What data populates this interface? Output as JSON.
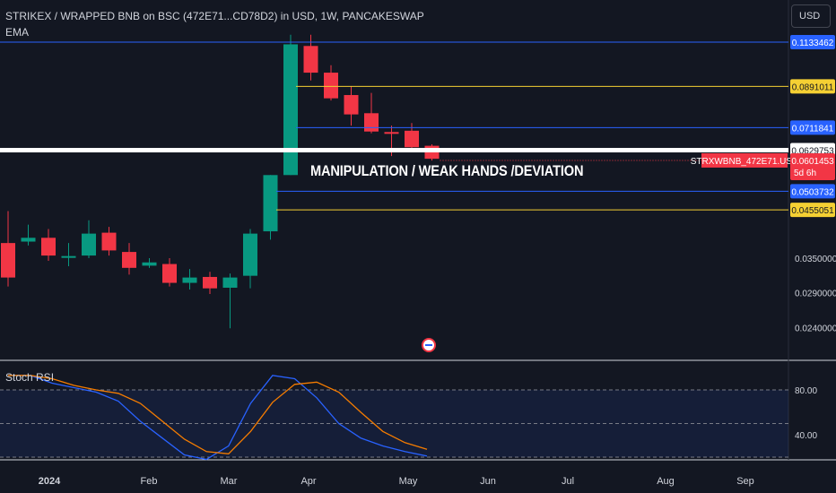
{
  "header": {
    "title": "STRIKEX / WRAPPED BNB on BSC (472E71...CD78D2) in USD, 1W, PANCAKESWAP",
    "indicator": "EMA"
  },
  "currency_button": "USD",
  "annotation": "MANIPULATION / WEAK HANDS /DEVIATION",
  "rsi_panel": {
    "label": "Stoch RSI"
  },
  "colors": {
    "background": "#131722",
    "up": "#089981",
    "down": "#f23645",
    "blue_level": "#2962ff",
    "yellow_level": "#f5d033",
    "white_level": "#ffffff",
    "rsi_k": "#2962ff",
    "rsi_d": "#f57c00"
  },
  "chart_data": [
    {
      "type": "candlestick",
      "price_scale": "log",
      "y_axis_ticks": [
        "0.0350000",
        "0.0290000",
        "0.0240000"
      ],
      "x_axis_ticks": [
        "2024",
        "Feb",
        "Mar",
        "Apr",
        "May",
        "Jun",
        "Jul",
        "Aug",
        "Sep"
      ],
      "candles": [
        {
          "o": 0.038,
          "h": 0.0452,
          "l": 0.03,
          "c": 0.0315
        },
        {
          "o": 0.0383,
          "h": 0.042,
          "l": 0.0375,
          "c": 0.0391
        },
        {
          "o": 0.0391,
          "h": 0.041,
          "l": 0.0345,
          "c": 0.0355
        },
        {
          "o": 0.0352,
          "h": 0.038,
          "l": 0.0335,
          "c": 0.0354
        },
        {
          "o": 0.0355,
          "h": 0.043,
          "l": 0.035,
          "c": 0.04
        },
        {
          "o": 0.0402,
          "h": 0.0415,
          "l": 0.0355,
          "c": 0.0365
        },
        {
          "o": 0.0362,
          "h": 0.038,
          "l": 0.032,
          "c": 0.0332
        },
        {
          "o": 0.0336,
          "h": 0.035,
          "l": 0.0332,
          "c": 0.0342
        },
        {
          "o": 0.0339,
          "h": 0.035,
          "l": 0.03,
          "c": 0.0306
        },
        {
          "o": 0.0306,
          "h": 0.033,
          "l": 0.0295,
          "c": 0.0315
        },
        {
          "o": 0.0316,
          "h": 0.0325,
          "l": 0.0288,
          "c": 0.0297
        },
        {
          "o": 0.0298,
          "h": 0.0322,
          "l": 0.0239,
          "c": 0.0315
        },
        {
          "o": 0.0318,
          "h": 0.041,
          "l": 0.0297,
          "c": 0.04
        },
        {
          "o": 0.0405,
          "h": 0.055,
          "l": 0.0387,
          "c": 0.055
        },
        {
          "o": 0.055,
          "h": 0.118,
          "l": 0.055,
          "c": 0.112
        },
        {
          "o": 0.111,
          "h": 0.118,
          "l": 0.092,
          "c": 0.096
        },
        {
          "o": 0.096,
          "h": 0.1,
          "l": 0.0825,
          "c": 0.0835
        },
        {
          "o": 0.085,
          "h": 0.089,
          "l": 0.072,
          "c": 0.0765
        },
        {
          "o": 0.077,
          "h": 0.086,
          "l": 0.069,
          "c": 0.0697
        },
        {
          "o": 0.0695,
          "h": 0.072,
          "l": 0.061,
          "c": 0.069
        },
        {
          "o": 0.07,
          "h": 0.073,
          "l": 0.063,
          "c": 0.064
        },
        {
          "o": 0.0645,
          "h": 0.065,
          "l": 0.0595,
          "c": 0.0601
        }
      ],
      "levels": [
        {
          "label": "0.1133462",
          "value": 0.1133462,
          "color": "#2962ff",
          "text_color": "#ffffff",
          "style": "line"
        },
        {
          "label": "0.0891011",
          "value": 0.0891011,
          "color": "#f5d033",
          "text_color": "#131722",
          "style": "line"
        },
        {
          "label": "0.0711841",
          "value": 0.0711841,
          "color": "#2962ff",
          "text_color": "#ffffff",
          "style": "line"
        },
        {
          "label": "0.0629753",
          "value": 0.0629753,
          "color": "#ffffff",
          "text_color": "#131722",
          "style": "thick"
        },
        {
          "label": "0.0503732",
          "value": 0.0503732,
          "color": "#2962ff",
          "text_color": "#ffffff",
          "style": "line"
        },
        {
          "label": "0.0455051",
          "value": 0.0455051,
          "color": "#f5d033",
          "text_color": "#131722",
          "style": "line"
        }
      ],
      "current_price": {
        "label": "0.0601453",
        "symbol": "STRXWBNB_472E71.USD",
        "countdown": "5d 6h",
        "value": 0.0601453,
        "color": "#f23645"
      }
    },
    {
      "type": "line",
      "title": "Stoch RSI",
      "y_axis_ticks": [
        "80.00",
        "40.00"
      ],
      "ylim": [
        20,
        100
      ],
      "band": [
        20,
        80
      ],
      "series": [
        {
          "values": [
            93,
            93,
            86,
            82,
            78,
            70,
            52,
            37,
            22,
            18,
            30,
            68,
            93,
            90,
            73,
            50,
            37,
            30,
            25,
            21
          ]
        },
        {
          "values": [
            93,
            93,
            90,
            84,
            80,
            77,
            68,
            52,
            36,
            25,
            23,
            43,
            69,
            85,
            87,
            78,
            60,
            43,
            33,
            27
          ]
        }
      ]
    }
  ]
}
